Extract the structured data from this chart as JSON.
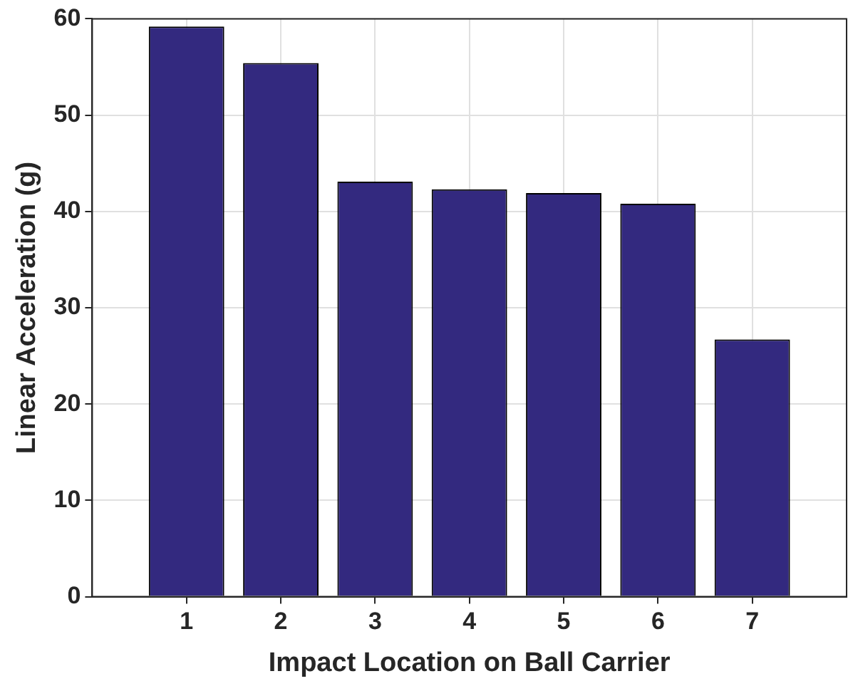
{
  "chart_data": {
    "type": "bar",
    "xlabel": "Impact Location on Ball Carrier",
    "ylabel": "Linear Acceleration (g)",
    "x": [
      1,
      2,
      3,
      4,
      5,
      6,
      7
    ],
    "values": [
      59.2,
      55.4,
      43.1,
      42.3,
      41.9,
      40.8,
      26.7
    ],
    "color": "#33297f",
    "xlim": [
      0,
      8
    ],
    "xticks": [
      1,
      2,
      3,
      4,
      5,
      6,
      7
    ],
    "ylim": [
      0,
      60
    ],
    "yticks": [
      0,
      10,
      20,
      30,
      40,
      50,
      60
    ],
    "grid": true,
    "legend": false
  }
}
